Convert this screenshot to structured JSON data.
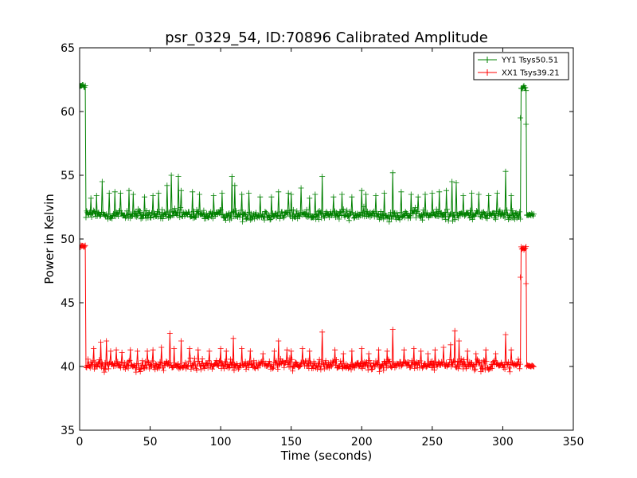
{
  "chart_data": {
    "type": "line",
    "title": "psr_0329_54, ID:70896 Calibrated Amplitude",
    "xlabel": "Time (seconds)",
    "ylabel": "Power in Kelvin",
    "xlim": [
      0,
      350
    ],
    "ylim": [
      35,
      65
    ],
    "xticks": [
      0,
      50,
      100,
      150,
      200,
      250,
      300,
      350
    ],
    "yticks": [
      35,
      40,
      45,
      50,
      55,
      60,
      65
    ],
    "grid": false,
    "legend_position": "top-right",
    "marker": "plus",
    "series": [
      {
        "name": "YY1 Tsys50.51",
        "color": "#008000",
        "segments": [
          {
            "x_start": 0,
            "x_end": 4,
            "level": 62.0,
            "noise": 0.15
          },
          {
            "x_start": 4.5,
            "x_end": 312.5,
            "level": 51.9,
            "noise": 0.4
          },
          {
            "x_start": 313,
            "x_end": 316.5,
            "level": 61.9,
            "noise": 0.2
          },
          {
            "x_start": 317,
            "x_end": 322,
            "level": 51.9,
            "noise": 0.1
          }
        ],
        "spikes": [
          {
            "x": 8,
            "y": 53.2
          },
          {
            "x": 12,
            "y": 53.4
          },
          {
            "x": 16,
            "y": 54.5
          },
          {
            "x": 21,
            "y": 53.6
          },
          {
            "x": 25,
            "y": 53.7
          },
          {
            "x": 29,
            "y": 53.6
          },
          {
            "x": 35,
            "y": 53.8
          },
          {
            "x": 38,
            "y": 53.5
          },
          {
            "x": 46,
            "y": 53.3
          },
          {
            "x": 52,
            "y": 53.4
          },
          {
            "x": 56,
            "y": 53.6
          },
          {
            "x": 62,
            "y": 54.2
          },
          {
            "x": 65,
            "y": 55.0
          },
          {
            "x": 70,
            "y": 54.9
          },
          {
            "x": 72,
            "y": 53.8
          },
          {
            "x": 80,
            "y": 53.7
          },
          {
            "x": 85,
            "y": 53.5
          },
          {
            "x": 95,
            "y": 53.4
          },
          {
            "x": 101,
            "y": 53.6
          },
          {
            "x": 108,
            "y": 54.9
          },
          {
            "x": 110,
            "y": 54.2
          },
          {
            "x": 115,
            "y": 53.5
          },
          {
            "x": 120,
            "y": 53.6
          },
          {
            "x": 128,
            "y": 53.3
          },
          {
            "x": 136,
            "y": 53.3
          },
          {
            "x": 141,
            "y": 53.7
          },
          {
            "x": 148,
            "y": 53.6
          },
          {
            "x": 150,
            "y": 53.5
          },
          {
            "x": 157,
            "y": 54.0
          },
          {
            "x": 163,
            "y": 53.2
          },
          {
            "x": 167,
            "y": 53.5
          },
          {
            "x": 172,
            "y": 54.9
          },
          {
            "x": 180,
            "y": 53.3
          },
          {
            "x": 186,
            "y": 53.5
          },
          {
            "x": 193,
            "y": 53.3
          },
          {
            "x": 200,
            "y": 53.8
          },
          {
            "x": 203,
            "y": 53.5
          },
          {
            "x": 210,
            "y": 53.4
          },
          {
            "x": 216,
            "y": 53.6
          },
          {
            "x": 222,
            "y": 55.2
          },
          {
            "x": 228,
            "y": 53.7
          },
          {
            "x": 235,
            "y": 53.5
          },
          {
            "x": 240,
            "y": 53.3
          },
          {
            "x": 245,
            "y": 53.5
          },
          {
            "x": 250,
            "y": 53.6
          },
          {
            "x": 255,
            "y": 53.7
          },
          {
            "x": 260,
            "y": 53.8
          },
          {
            "x": 264,
            "y": 54.5
          },
          {
            "x": 267,
            "y": 54.4
          },
          {
            "x": 272,
            "y": 53.4
          },
          {
            "x": 278,
            "y": 53.6
          },
          {
            "x": 283,
            "y": 53.5
          },
          {
            "x": 290,
            "y": 53.4
          },
          {
            "x": 296,
            "y": 53.6
          },
          {
            "x": 302,
            "y": 55.3
          },
          {
            "x": 306,
            "y": 53.4
          }
        ],
        "transition_points": [
          {
            "x": 312.5,
            "y": 59.5
          },
          {
            "x": 316.5,
            "y": 59.0
          }
        ]
      },
      {
        "name": "XX1 Tsys39.21",
        "color": "#ff0000",
        "segments": [
          {
            "x_start": 0,
            "x_end": 4,
            "level": 49.4,
            "noise": 0.15
          },
          {
            "x_start": 4.5,
            "x_end": 312.5,
            "level": 40.1,
            "noise": 0.4
          },
          {
            "x_start": 313,
            "x_end": 316.5,
            "level": 49.3,
            "noise": 0.2
          },
          {
            "x_start": 317,
            "x_end": 322,
            "level": 40.0,
            "noise": 0.1
          }
        ],
        "spikes": [
          {
            "x": 10,
            "y": 41.4
          },
          {
            "x": 15,
            "y": 41.9
          },
          {
            "x": 19,
            "y": 42.0
          },
          {
            "x": 22,
            "y": 41.2
          },
          {
            "x": 26,
            "y": 41.3
          },
          {
            "x": 30,
            "y": 41.1
          },
          {
            "x": 36,
            "y": 41.3
          },
          {
            "x": 41,
            "y": 41.2
          },
          {
            "x": 48,
            "y": 41.2
          },
          {
            "x": 52,
            "y": 41.3
          },
          {
            "x": 58,
            "y": 41.5
          },
          {
            "x": 64,
            "y": 42.6
          },
          {
            "x": 67,
            "y": 41.4
          },
          {
            "x": 72,
            "y": 42.0
          },
          {
            "x": 78,
            "y": 41.4
          },
          {
            "x": 84,
            "y": 41.3
          },
          {
            "x": 92,
            "y": 41.2
          },
          {
            "x": 100,
            "y": 41.4
          },
          {
            "x": 104,
            "y": 41.2
          },
          {
            "x": 109,
            "y": 42.2
          },
          {
            "x": 115,
            "y": 41.4
          },
          {
            "x": 121,
            "y": 41.2
          },
          {
            "x": 130,
            "y": 41.0
          },
          {
            "x": 138,
            "y": 41.2
          },
          {
            "x": 141,
            "y": 42.0
          },
          {
            "x": 147,
            "y": 41.3
          },
          {
            "x": 150,
            "y": 41.2
          },
          {
            "x": 158,
            "y": 41.4
          },
          {
            "x": 163,
            "y": 41.2
          },
          {
            "x": 172,
            "y": 42.7
          },
          {
            "x": 181,
            "y": 41.3
          },
          {
            "x": 187,
            "y": 41.0
          },
          {
            "x": 193,
            "y": 41.2
          },
          {
            "x": 200,
            "y": 41.4
          },
          {
            "x": 205,
            "y": 41.0
          },
          {
            "x": 212,
            "y": 41.3
          },
          {
            "x": 218,
            "y": 41.2
          },
          {
            "x": 222,
            "y": 42.9
          },
          {
            "x": 230,
            "y": 41.3
          },
          {
            "x": 237,
            "y": 41.4
          },
          {
            "x": 242,
            "y": 41.2
          },
          {
            "x": 247,
            "y": 41.0
          },
          {
            "x": 252,
            "y": 41.3
          },
          {
            "x": 258,
            "y": 41.5
          },
          {
            "x": 263,
            "y": 41.7
          },
          {
            "x": 266,
            "y": 42.8
          },
          {
            "x": 269,
            "y": 42.0
          },
          {
            "x": 275,
            "y": 41.2
          },
          {
            "x": 281,
            "y": 41.0
          },
          {
            "x": 288,
            "y": 41.3
          },
          {
            "x": 295,
            "y": 41.0
          },
          {
            "x": 302,
            "y": 42.5
          },
          {
            "x": 306,
            "y": 41.3
          }
        ],
        "transition_points": [
          {
            "x": 312.5,
            "y": 47.0
          },
          {
            "x": 316.5,
            "y": 46.5
          }
        ]
      }
    ]
  }
}
